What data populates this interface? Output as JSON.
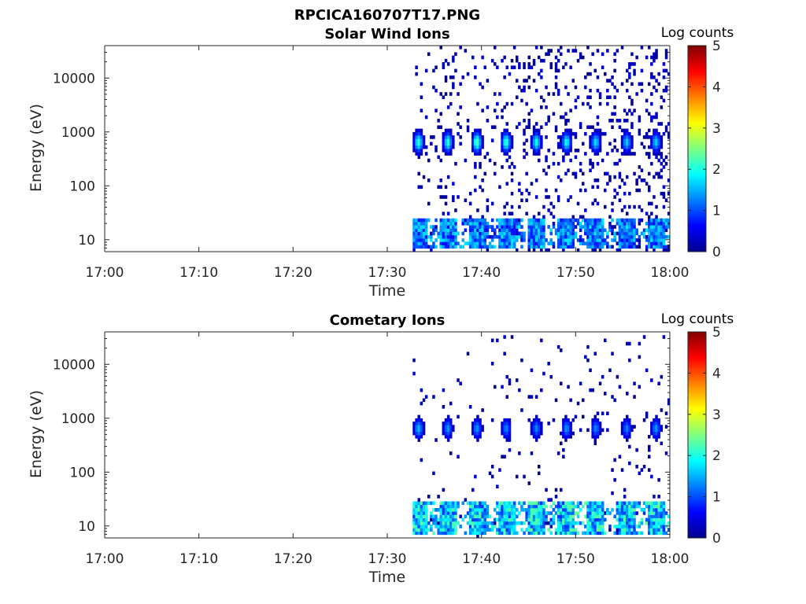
{
  "figure": {
    "title": "RPCICA160707T17.PNG"
  },
  "chart_data": [
    {
      "type": "heatmap",
      "title": "Solar Wind Ions",
      "xlabel": "Time",
      "ylabel": "Energy (eV)",
      "yscale": "log",
      "ylim": [
        6,
        40000
      ],
      "x_ticks": [
        "17:00",
        "17:10",
        "17:20",
        "17:30",
        "17:40",
        "17:50",
        "18:00"
      ],
      "x_minutes": [
        0,
        10,
        20,
        30,
        40,
        50,
        60
      ],
      "xlim_minutes": [
        0,
        60
      ],
      "y_ticks": [
        10,
        100,
        1000,
        10000
      ],
      "y_tick_labels": [
        "10",
        "100",
        "1000",
        "10000"
      ],
      "colorbar": {
        "label": "Log counts",
        "min": 0,
        "max": 5,
        "ticks": [
          "0",
          "1",
          "2",
          "3",
          "4",
          "5"
        ]
      },
      "data_start_minute": 32.7,
      "peak_times_minutes": [
        33.2,
        36.3,
        39.4,
        42.5,
        45.7,
        48.9,
        52.0,
        55.3,
        58.4
      ],
      "peak_energy_eV": 650,
      "peak_log_counts": [
        2.2,
        2.1,
        2.4,
        2.2,
        2.0,
        2.0,
        1.8,
        1.7,
        1.7
      ],
      "low_energy_band_eV": [
        7,
        25
      ],
      "low_energy_log_counts": 1.8
    },
    {
      "type": "heatmap",
      "title": "Cometary Ions",
      "xlabel": "Time",
      "ylabel": "Energy (eV)",
      "yscale": "log",
      "ylim": [
        6,
        40000
      ],
      "x_ticks": [
        "17:00",
        "17:10",
        "17:20",
        "17:30",
        "17:40",
        "17:50",
        "18:00"
      ],
      "x_minutes": [
        0,
        10,
        20,
        30,
        40,
        50,
        60
      ],
      "xlim_minutes": [
        0,
        60
      ],
      "y_ticks": [
        10,
        100,
        1000,
        10000
      ],
      "y_tick_labels": [
        "10",
        "100",
        "1000",
        "10000"
      ],
      "colorbar": {
        "label": "Log counts",
        "min": 0,
        "max": 5,
        "ticks": [
          "0",
          "1",
          "2",
          "3",
          "4",
          "5"
        ]
      },
      "data_start_minute": 32.7,
      "peak_times_minutes": [
        33.2,
        36.3,
        39.4,
        42.5,
        45.7,
        48.9,
        52.0,
        55.3,
        58.4
      ],
      "peak_energy_eV": 650,
      "peak_log_counts": [
        1.6,
        1.4,
        1.4,
        1.3,
        1.3,
        1.4,
        1.3,
        1.3,
        1.4
      ],
      "low_energy_band_eV": [
        7,
        30
      ],
      "low_energy_log_counts": 2.4
    }
  ]
}
